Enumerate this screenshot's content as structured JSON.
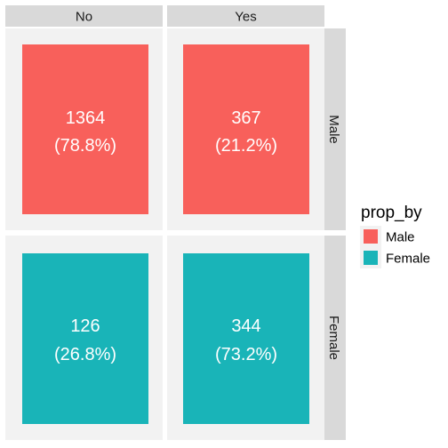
{
  "chart_data": {
    "type": "mosaic",
    "columns": [
      "No",
      "Yes"
    ],
    "rows": [
      "Male",
      "Female"
    ],
    "cells": [
      {
        "row": "Male",
        "col": "No",
        "count": 1364,
        "pct_label": "(78.8%)",
        "prop": 0.788,
        "fill_key": "Male"
      },
      {
        "row": "Male",
        "col": "Yes",
        "count": 367,
        "pct_label": "(21.2%)",
        "prop": 0.212,
        "fill_key": "Male"
      },
      {
        "row": "Female",
        "col": "No",
        "count": 126,
        "pct_label": "(26.8%)",
        "prop": 0.268,
        "fill_key": "Female"
      },
      {
        "row": "Female",
        "col": "Yes",
        "count": 344,
        "pct_label": "(73.2%)",
        "prop": 0.732,
        "fill_key": "Female"
      }
    ],
    "legend": {
      "title": "prop_by",
      "placement": "right",
      "entries": [
        {
          "label": "Male",
          "color": "#F8605B"
        },
        {
          "label": "Female",
          "color": "#19B4B8"
        }
      ]
    },
    "colors": {
      "panel_bg": "#F2F2F2",
      "strip_bg": "#D9D9D9",
      "gridline": "#FFFFFF"
    }
  }
}
